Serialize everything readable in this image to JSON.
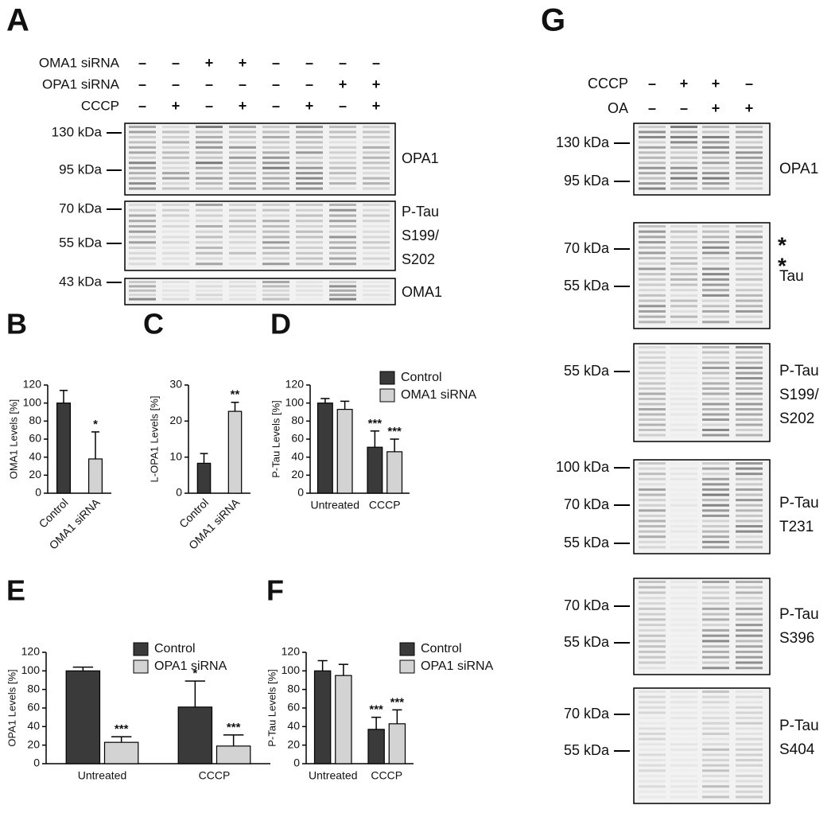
{
  "figure_a": {
    "letter": "A",
    "treatments": [
      {
        "label": "OMA1 siRNA",
        "signs": [
          "–",
          "–",
          "+",
          "+",
          "–",
          "–",
          "–",
          "–"
        ]
      },
      {
        "label": "OPA1 siRNA",
        "signs": [
          "–",
          "–",
          "–",
          "–",
          "–",
          "–",
          "+",
          "+"
        ]
      },
      {
        "label": "CCCP",
        "signs": [
          "–",
          "+",
          "–",
          "+",
          "–",
          "+",
          "–",
          "+"
        ]
      }
    ],
    "markers": [
      "130 kDa",
      "95 kDa",
      "70 kDa",
      "55 kDa",
      "43 kDa"
    ],
    "blots": [
      {
        "label": [
          "OPA1"
        ]
      },
      {
        "label": [
          "P-Tau",
          "S199/",
          "S202"
        ]
      },
      {
        "label": [
          "OMA1"
        ]
      }
    ]
  },
  "figure_g": {
    "letter": "G",
    "treatments": [
      {
        "label": "CCCP",
        "signs": [
          "–",
          "+",
          "+",
          "–"
        ]
      },
      {
        "label": "OA",
        "signs": [
          "–",
          "–",
          "+",
          "+"
        ]
      }
    ],
    "blots": [
      {
        "label": [
          "OPA1"
        ],
        "markers": [
          "130 kDa",
          "95 kDa"
        ]
      },
      {
        "label": [
          "Tau"
        ],
        "markers": [
          "70 kDa",
          "55 kDa"
        ],
        "annotations": [
          "*",
          "*"
        ]
      },
      {
        "label": [
          "P-Tau",
          "S199/",
          "S202"
        ],
        "markers": [
          "55 kDa"
        ]
      },
      {
        "label": [
          "P-Tau",
          "T231"
        ],
        "markers": [
          "100 kDa",
          "70 kDa",
          "55 kDa"
        ]
      },
      {
        "label": [
          "P-Tau",
          "S396"
        ],
        "markers": [
          "70 kDa",
          "55 kDa"
        ]
      },
      {
        "label": [
          "P-Tau",
          "S404"
        ],
        "markers": [
          "70 kDa",
          "55 kDa"
        ]
      }
    ]
  },
  "chart_data": [
    {
      "type": "bar",
      "panel": "B",
      "ylabel": "OMA1 Levels [%]",
      "categories": [
        "Control",
        "OMA1 siRNA"
      ],
      "values": [
        100,
        38
      ],
      "errors": [
        14,
        30
      ],
      "significance": [
        null,
        "*"
      ],
      "colors": [
        "#3a3a3a",
        "#d3d3d3"
      ],
      "ylim": [
        0,
        120
      ],
      "yticks": [
        0,
        20,
        40,
        60,
        80,
        100,
        120
      ]
    },
    {
      "type": "bar",
      "panel": "C",
      "ylabel": "L-OPA1 Levels [%]",
      "categories": [
        "Control",
        "OMA1 siRNA"
      ],
      "values": [
        8.3,
        22.7
      ],
      "errors": [
        2.7,
        2.5
      ],
      "significance": [
        null,
        "**"
      ],
      "colors": [
        "#3a3a3a",
        "#d3d3d3"
      ],
      "ylim": [
        0,
        30
      ],
      "yticks": [
        0,
        10,
        20,
        30
      ]
    },
    {
      "type": "grouped-bar",
      "panel": "D",
      "ylabel": "P-Tau Levels [%]",
      "categories": [
        "Untreated",
        "CCCP"
      ],
      "series": [
        {
          "name": "Control",
          "color": "#3a3a3a",
          "values": [
            100,
            51
          ],
          "errors": [
            5,
            18
          ],
          "significance": [
            null,
            "***"
          ]
        },
        {
          "name": "OMA1 siRNA",
          "color": "#d3d3d3",
          "values": [
            93,
            46
          ],
          "errors": [
            9,
            14
          ],
          "significance": [
            null,
            "***"
          ]
        }
      ],
      "ylim": [
        0,
        120
      ],
      "yticks": [
        0,
        20,
        40,
        60,
        80,
        100,
        120
      ]
    },
    {
      "type": "grouped-bar",
      "panel": "E",
      "ylabel": "OPA1 Levels [%]",
      "categories": [
        "Untreated",
        "CCCP"
      ],
      "series": [
        {
          "name": "Control",
          "color": "#3a3a3a",
          "values": [
            100,
            61
          ],
          "errors": [
            4,
            28
          ],
          "significance": [
            null,
            "*"
          ]
        },
        {
          "name": "OPA1 siRNA",
          "color": "#d3d3d3",
          "values": [
            23,
            19
          ],
          "errors": [
            6,
            12
          ],
          "significance": [
            "***",
            "***"
          ]
        }
      ],
      "ylim": [
        0,
        120
      ],
      "yticks": [
        0,
        20,
        40,
        60,
        80,
        100,
        120
      ]
    },
    {
      "type": "grouped-bar",
      "panel": "F",
      "ylabel": "P-Tau Levels [%]",
      "categories": [
        "Untreated",
        "CCCP"
      ],
      "series": [
        {
          "name": "Control",
          "color": "#3a3a3a",
          "values": [
            100,
            37
          ],
          "errors": [
            11,
            13
          ],
          "significance": [
            null,
            "***"
          ]
        },
        {
          "name": "OPA1 siRNA",
          "color": "#d3d3d3",
          "values": [
            95,
            43
          ],
          "errors": [
            12,
            15
          ],
          "significance": [
            null,
            "***"
          ]
        }
      ],
      "ylim": [
        0,
        120
      ],
      "yticks": [
        0,
        20,
        40,
        60,
        80,
        100,
        120
      ]
    }
  ]
}
